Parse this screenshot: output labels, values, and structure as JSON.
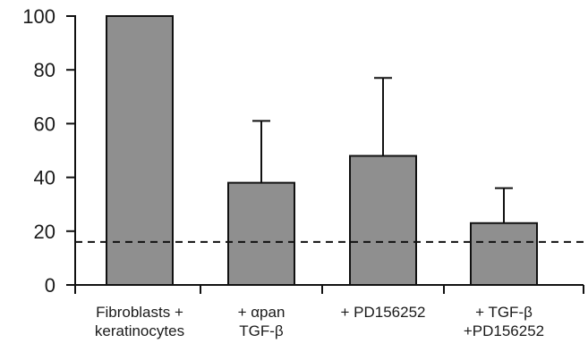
{
  "chart_data": {
    "type": "bar",
    "categories": [
      [
        "Fibroblasts +",
        "keratinocytes"
      ],
      [
        "+ αpan",
        "TGF-β"
      ],
      [
        "+ PD156252"
      ],
      [
        "+ TGF-β",
        "+PD156252"
      ]
    ],
    "values": [
      100,
      38,
      48,
      23
    ],
    "error_upper": [
      100,
      61,
      77,
      36
    ],
    "reference_line": 16,
    "ylim": [
      0,
      100
    ],
    "yticks": [
      0,
      20,
      40,
      60,
      80,
      100
    ],
    "title": "",
    "xlabel": "",
    "ylabel": "",
    "grid": false,
    "colors": {
      "bar_fill": "#8f8f8f",
      "bar_stroke": "#111111",
      "axis": "#111111"
    }
  }
}
